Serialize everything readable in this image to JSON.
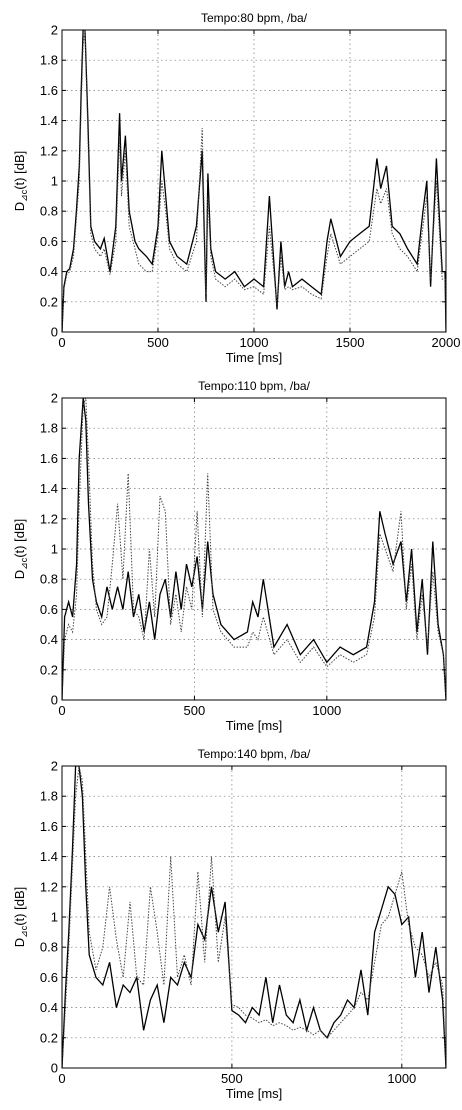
{
  "chart_data": [
    {
      "type": "line",
      "title": "Tempo:80 bpm, /ba/",
      "xlabel": "Time [ms]",
      "ylabel": "D",
      "ylabel_sub": "⊿c",
      "ylabel_tail": "(t) [dB]",
      "xlim": [
        0,
        2000
      ],
      "ylim": [
        0,
        2
      ],
      "xticks": [
        0,
        500,
        1000,
        1500,
        2000
      ],
      "yticks": [
        0,
        0.2,
        0.4,
        0.6,
        0.8,
        1,
        1.2,
        1.4,
        1.6,
        1.8,
        2
      ],
      "ytick_labels": [
        "0",
        "0.2",
        "0.4",
        "0.6",
        "0.8",
        "1",
        "1.2",
        "1.4",
        "1.6",
        "1.8",
        "2"
      ],
      "grid": true,
      "series": [
        {
          "style": "solid",
          "x": [
            0,
            10,
            25,
            40,
            60,
            75,
            90,
            100,
            110,
            120,
            135,
            150,
            170,
            200,
            220,
            250,
            280,
            300,
            310,
            330,
            350,
            380,
            400,
            440,
            470,
            500,
            520,
            540,
            560,
            600,
            650,
            700,
            730,
            750,
            760,
            775,
            800,
            850,
            900,
            950,
            1000,
            1050,
            1080,
            1120,
            1140,
            1160,
            1180,
            1200,
            1250,
            1300,
            1350,
            1380,
            1400,
            1450,
            1500,
            1550,
            1600,
            1640,
            1660,
            1690,
            1720,
            1760,
            1800,
            1850,
            1880,
            1900,
            1920,
            1950,
            1980,
            1995,
            2000
          ],
          "y": [
            0,
            0.3,
            0.4,
            0.42,
            0.55,
            0.8,
            1.1,
            1.6,
            2.0,
            2.0,
            1.4,
            0.7,
            0.6,
            0.55,
            0.62,
            0.4,
            0.7,
            1.45,
            1.0,
            1.3,
            0.8,
            0.6,
            0.55,
            0.5,
            0.45,
            0.7,
            1.2,
            0.9,
            0.6,
            0.5,
            0.45,
            0.7,
            1.2,
            0.2,
            1.05,
            0.55,
            0.4,
            0.35,
            0.4,
            0.3,
            0.35,
            0.3,
            0.9,
            0.15,
            0.6,
            0.3,
            0.4,
            0.3,
            0.35,
            0.3,
            0.25,
            0.6,
            0.75,
            0.5,
            0.6,
            0.65,
            0.7,
            1.15,
            0.95,
            1.1,
            0.7,
            0.65,
            0.55,
            0.45,
            0.8,
            1.0,
            0.3,
            1.15,
            0.4,
            0.4,
            0
          ]
        },
        {
          "style": "dotted",
          "x": [
            0,
            10,
            25,
            40,
            60,
            75,
            90,
            100,
            110,
            120,
            135,
            150,
            170,
            200,
            220,
            250,
            280,
            300,
            310,
            330,
            350,
            380,
            400,
            440,
            470,
            500,
            520,
            540,
            560,
            600,
            650,
            700,
            730,
            750,
            760,
            775,
            800,
            850,
            900,
            950,
            1000,
            1050,
            1080,
            1120,
            1140,
            1160,
            1180,
            1200,
            1250,
            1300,
            1350,
            1380,
            1400,
            1450,
            1500,
            1550,
            1600,
            1640,
            1660,
            1690,
            1720,
            1760,
            1800,
            1850,
            1880,
            1900,
            1920,
            1950,
            1980,
            1995,
            2000
          ],
          "y": [
            0,
            0.28,
            0.38,
            0.4,
            0.5,
            0.75,
            1.0,
            1.5,
            1.9,
            2.0,
            1.3,
            0.65,
            0.55,
            0.5,
            0.55,
            0.38,
            0.6,
            1.3,
            0.9,
            1.2,
            0.7,
            0.55,
            0.45,
            0.4,
            0.4,
            0.65,
            1.0,
            0.8,
            0.55,
            0.45,
            0.4,
            0.6,
            1.35,
            0.25,
            0.9,
            0.5,
            0.35,
            0.3,
            0.35,
            0.28,
            0.3,
            0.25,
            0.7,
            0.18,
            0.5,
            0.28,
            0.3,
            0.28,
            0.3,
            0.25,
            0.22,
            0.5,
            0.65,
            0.45,
            0.5,
            0.55,
            0.6,
            0.95,
            0.85,
            0.95,
            0.65,
            0.55,
            0.5,
            0.4,
            0.7,
            0.9,
            0.35,
            1.0,
            0.35,
            0.35,
            0
          ]
        }
      ]
    },
    {
      "type": "line",
      "title": "Tempo:110 bpm, /ba/",
      "xlabel": "Time [ms]",
      "ylabel": "D",
      "ylabel_sub": "⊿c",
      "ylabel_tail": "(t) [dB]",
      "xlim": [
        0,
        1450
      ],
      "ylim": [
        0,
        2
      ],
      "xticks": [
        0,
        500,
        1000
      ],
      "yticks": [
        0,
        0.2,
        0.4,
        0.6,
        0.8,
        1,
        1.2,
        1.4,
        1.6,
        1.8,
        2
      ],
      "ytick_labels": [
        "0",
        "0.2",
        "0.4",
        "0.6",
        "0.8",
        "1",
        "1.2",
        "1.4",
        "1.6",
        "1.8",
        "2"
      ],
      "grid": true,
      "series": [
        {
          "style": "solid",
          "x": [
            0,
            10,
            25,
            40,
            55,
            65,
            80,
            90,
            100,
            115,
            130,
            150,
            170,
            190,
            210,
            230,
            250,
            270,
            290,
            310,
            330,
            350,
            370,
            390,
            410,
            430,
            450,
            470,
            490,
            510,
            530,
            550,
            570,
            600,
            650,
            700,
            720,
            740,
            760,
            800,
            850,
            900,
            950,
            1000,
            1050,
            1100,
            1150,
            1180,
            1200,
            1220,
            1250,
            1280,
            1300,
            1320,
            1340,
            1360,
            1380,
            1400,
            1420,
            1440,
            1450
          ],
          "y": [
            0,
            0.55,
            0.65,
            0.55,
            0.9,
            1.6,
            2.0,
            1.85,
            1.3,
            0.8,
            0.65,
            0.55,
            0.75,
            0.6,
            0.75,
            0.6,
            0.85,
            0.55,
            0.7,
            0.45,
            0.65,
            0.4,
            0.7,
            0.8,
            0.55,
            0.85,
            0.6,
            0.9,
            0.75,
            0.95,
            0.6,
            1.05,
            0.7,
            0.5,
            0.4,
            0.45,
            0.65,
            0.55,
            0.8,
            0.35,
            0.5,
            0.3,
            0.4,
            0.25,
            0.35,
            0.3,
            0.35,
            0.65,
            1.25,
            1.1,
            0.9,
            1.05,
            0.65,
            1.0,
            0.45,
            0.8,
            0.3,
            1.05,
            0.5,
            0.3,
            0
          ]
        },
        {
          "style": "dotted",
          "x": [
            0,
            10,
            25,
            40,
            55,
            65,
            80,
            90,
            100,
            115,
            130,
            150,
            170,
            190,
            210,
            230,
            250,
            270,
            290,
            310,
            330,
            350,
            370,
            390,
            410,
            430,
            450,
            470,
            490,
            510,
            530,
            550,
            570,
            600,
            650,
            700,
            720,
            740,
            760,
            800,
            850,
            900,
            950,
            1000,
            1050,
            1100,
            1150,
            1180,
            1200,
            1220,
            1250,
            1280,
            1300,
            1320,
            1340,
            1360,
            1380,
            1400,
            1420,
            1440,
            1450
          ],
          "y": [
            0,
            0.4,
            0.5,
            0.45,
            0.7,
            1.3,
            1.95,
            2.0,
            1.6,
            0.9,
            0.6,
            0.5,
            0.55,
            0.9,
            1.3,
            0.8,
            1.5,
            0.6,
            0.55,
            0.4,
            1.0,
            0.55,
            1.35,
            1.25,
            0.5,
            0.7,
            0.45,
            0.75,
            0.6,
            1.25,
            0.55,
            1.5,
            0.6,
            0.45,
            0.35,
            0.35,
            0.45,
            0.4,
            0.55,
            0.3,
            0.4,
            0.25,
            0.35,
            0.22,
            0.3,
            0.25,
            0.3,
            0.55,
            1.1,
            1.0,
            0.85,
            1.25,
            0.6,
            0.9,
            0.4,
            0.7,
            0.35,
            0.85,
            0.45,
            0.3,
            0
          ]
        }
      ]
    },
    {
      "type": "line",
      "title": "Tempo:140 bpm, /ba/",
      "xlabel": "Time [ms]",
      "ylabel": "D",
      "ylabel_sub": "⊿c",
      "ylabel_tail": "(t) [dB]",
      "xlim": [
        0,
        1130
      ],
      "ylim": [
        0,
        2
      ],
      "xticks": [
        0,
        500,
        1000
      ],
      "yticks": [
        0,
        0.2,
        0.4,
        0.6,
        0.8,
        1,
        1.2,
        1.4,
        1.6,
        1.8,
        2
      ],
      "ytick_labels": [
        "0",
        "0.2",
        "0.4",
        "0.6",
        "0.8",
        "1",
        "1.2",
        "1.4",
        "1.6",
        "1.8",
        "2"
      ],
      "grid": true,
      "series": [
        {
          "style": "solid",
          "x": [
            0,
            10,
            20,
            30,
            40,
            50,
            60,
            70,
            80,
            100,
            120,
            140,
            160,
            180,
            200,
            220,
            240,
            260,
            280,
            300,
            320,
            340,
            360,
            380,
            400,
            420,
            440,
            460,
            480,
            500,
            520,
            540,
            560,
            580,
            600,
            620,
            640,
            660,
            680,
            700,
            720,
            740,
            760,
            780,
            800,
            820,
            840,
            860,
            880,
            900,
            920,
            940,
            960,
            980,
            1000,
            1020,
            1040,
            1060,
            1080,
            1100,
            1120,
            1130
          ],
          "y": [
            0,
            0.5,
            0.9,
            1.4,
            2.0,
            2.0,
            1.8,
            1.2,
            0.75,
            0.6,
            0.55,
            0.7,
            0.4,
            0.55,
            0.5,
            0.6,
            0.25,
            0.45,
            0.55,
            0.3,
            0.6,
            0.55,
            0.7,
            0.6,
            0.95,
            0.85,
            1.2,
            0.9,
            1.1,
            0.38,
            0.35,
            0.3,
            0.4,
            0.35,
            0.6,
            0.3,
            0.55,
            0.35,
            0.3,
            0.45,
            0.25,
            0.4,
            0.25,
            0.2,
            0.3,
            0.35,
            0.45,
            0.4,
            0.65,
            0.35,
            0.9,
            1.05,
            1.2,
            1.15,
            0.95,
            1.0,
            0.6,
            0.9,
            0.5,
            0.8,
            0.45,
            0
          ]
        },
        {
          "style": "dotted",
          "x": [
            0,
            10,
            20,
            30,
            40,
            50,
            60,
            70,
            80,
            100,
            120,
            140,
            160,
            180,
            200,
            220,
            240,
            260,
            280,
            300,
            320,
            340,
            360,
            380,
            400,
            420,
            440,
            460,
            480,
            500,
            520,
            540,
            560,
            580,
            600,
            620,
            640,
            660,
            680,
            700,
            720,
            740,
            760,
            780,
            800,
            820,
            840,
            860,
            880,
            900,
            920,
            940,
            960,
            980,
            1000,
            1020,
            1040,
            1060,
            1080,
            1100,
            1120,
            1130
          ],
          "y": [
            0,
            0.4,
            0.8,
            1.3,
            1.8,
            2.0,
            1.9,
            1.4,
            0.9,
            0.65,
            0.8,
            1.2,
            0.85,
            0.6,
            1.1,
            0.6,
            0.55,
            1.2,
            0.9,
            0.55,
            1.4,
            0.6,
            0.75,
            0.55,
            1.3,
            0.7,
            1.4,
            0.7,
            1.0,
            0.42,
            0.4,
            0.35,
            0.33,
            0.3,
            0.32,
            0.28,
            0.3,
            0.28,
            0.25,
            0.27,
            0.25,
            0.22,
            0.25,
            0.2,
            0.25,
            0.3,
            0.35,
            0.4,
            0.5,
            0.45,
            0.7,
            0.95,
            1.0,
            1.15,
            1.3,
            0.95,
            0.8,
            0.75,
            0.6,
            0.7,
            0.55,
            0
          ]
        }
      ]
    }
  ]
}
